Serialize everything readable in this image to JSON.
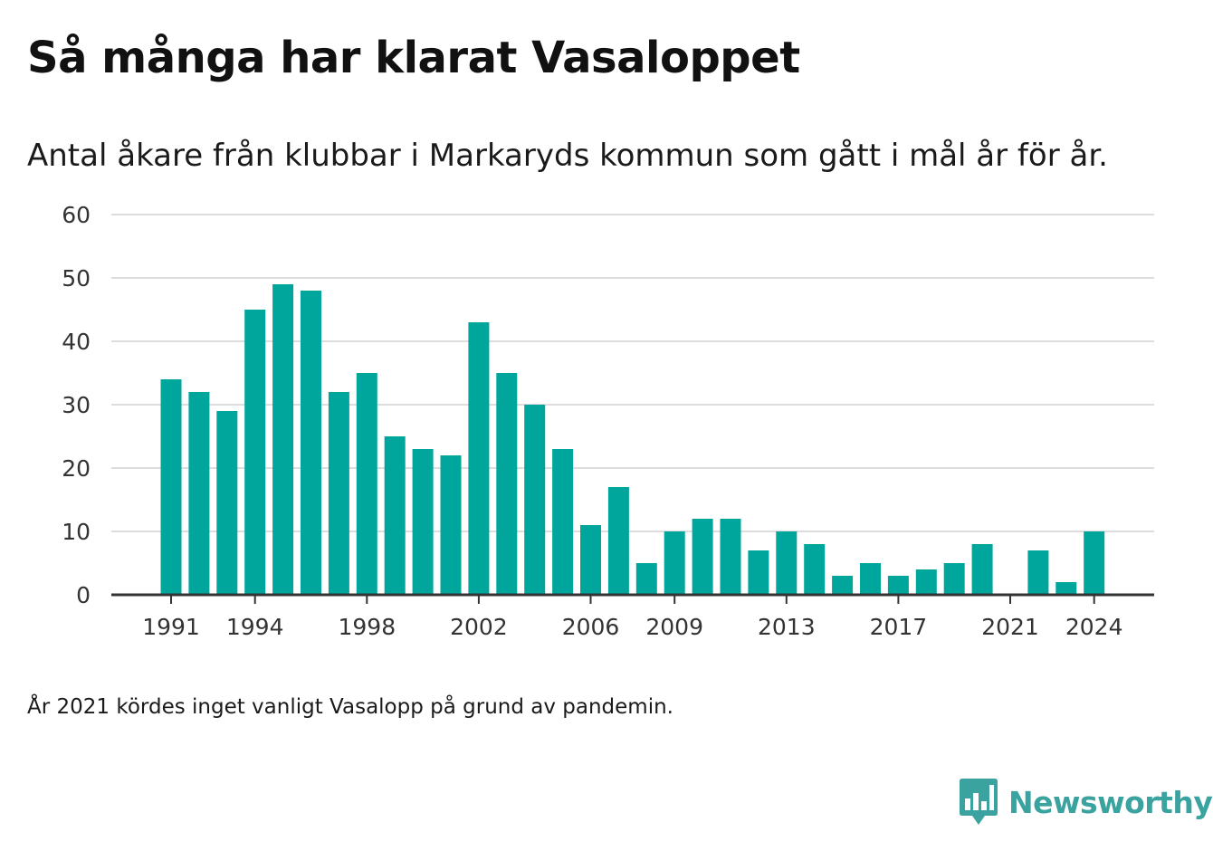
{
  "title": "Så många har klarat Vasaloppet",
  "subtitle": "Antal åkare från klubbar i Markaryds kommun som gått i mål år för år.",
  "note": "År 2021 kördes inget vanligt Vasalopp på grund av pandemin.",
  "brand": {
    "name": "Newsworthy",
    "icon": "bar-chart-speech-bubble-icon",
    "color": "#3aa3a0"
  },
  "chart_data": {
    "type": "bar",
    "title": "Så många har klarat Vasaloppet",
    "subtitle": "Antal åkare från klubbar i Markaryds kommun som gått i mål år för år.",
    "xlabel": "",
    "ylabel": "",
    "ylim": [
      0,
      60
    ],
    "y_ticks": [
      0,
      10,
      20,
      30,
      40,
      50,
      60
    ],
    "x_tick_labels": [
      1991,
      1994,
      1998,
      2002,
      2006,
      2009,
      2013,
      2017,
      2021,
      2024
    ],
    "grid": true,
    "bar_color": "#00a69c",
    "categories": [
      1991,
      1992,
      1993,
      1994,
      1995,
      1996,
      1997,
      1998,
      1999,
      2000,
      2001,
      2002,
      2003,
      2004,
      2005,
      2006,
      2007,
      2008,
      2009,
      2010,
      2011,
      2012,
      2013,
      2014,
      2015,
      2016,
      2017,
      2018,
      2019,
      2020,
      2021,
      2022,
      2023,
      2024
    ],
    "values": [
      34,
      32,
      29,
      45,
      49,
      48,
      32,
      35,
      25,
      23,
      22,
      43,
      35,
      30,
      23,
      11,
      17,
      5,
      10,
      12,
      12,
      7,
      10,
      8,
      3,
      5,
      3,
      4,
      5,
      8,
      0,
      7,
      2,
      10
    ]
  }
}
